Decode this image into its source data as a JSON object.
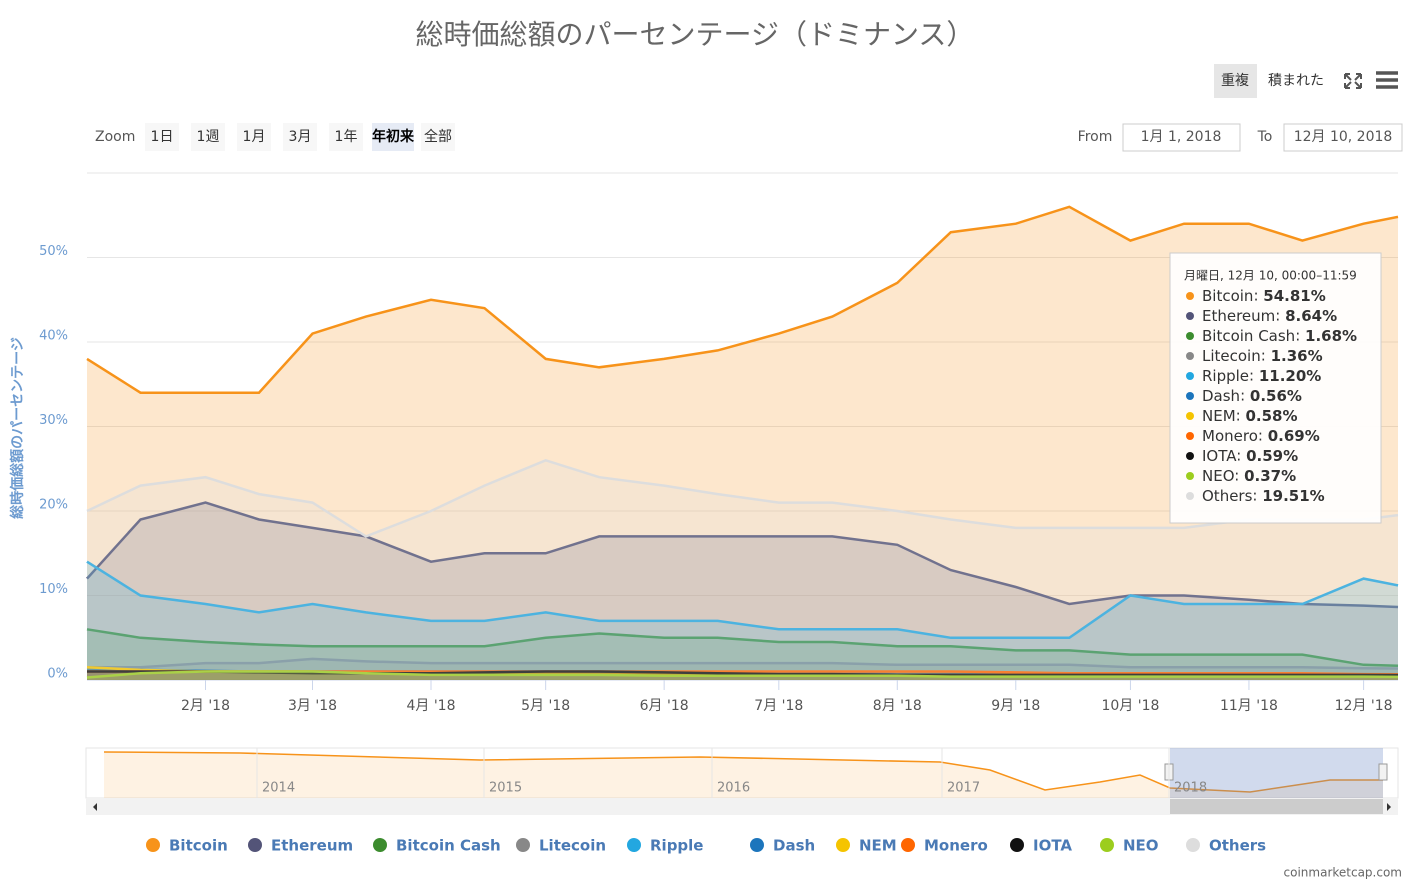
{
  "ui": {
    "buttons": [
      "重複",
      "積まれた"
    ],
    "zoom_label": "Zoom",
    "zoom_buttons": [
      "1日",
      "1週",
      "1月",
      "3月",
      "1年",
      "年初来",
      "全部"
    ],
    "from_label": "From",
    "from_value": "1月 1, 2018",
    "to_label": "To",
    "to_value": "12月 10, 2018",
    "navigator_years": [
      "2014",
      "2015",
      "2016",
      "2017",
      "2018"
    ],
    "credit": "coinmarketcap.com"
  },
  "chart_data": {
    "type": "area",
    "title": "総時価総額のパーセンテージ（ドミナンス）",
    "y_label": "総時価総額のパーセンテージ",
    "x": [
      "2018-01-01",
      "2018-01-15",
      "2018-02-01",
      "2018-02-15",
      "2018-03-01",
      "2018-03-15",
      "2018-04-01",
      "2018-04-15",
      "2018-05-01",
      "2018-05-15",
      "2018-06-01",
      "2018-06-15",
      "2018-07-01",
      "2018-07-15",
      "2018-08-01",
      "2018-08-15",
      "2018-09-01",
      "2018-09-15",
      "2018-10-01",
      "2018-10-15",
      "2018-11-01",
      "2018-11-15",
      "2018-12-01",
      "2018-12-10"
    ],
    "xlim": [
      "2018-01-01",
      "2018-12-10"
    ],
    "xticks": [
      {
        "value": "2018-02-01",
        "label": "2月 '18"
      },
      {
        "value": "2018-03-01",
        "label": "3月 '18"
      },
      {
        "value": "2018-04-01",
        "label": "4月 '18"
      },
      {
        "value": "2018-05-01",
        "label": "5月 '18"
      },
      {
        "value": "2018-06-01",
        "label": "6月 '18"
      },
      {
        "value": "2018-07-01",
        "label": "7月 '18"
      },
      {
        "value": "2018-08-01",
        "label": "8月 '18"
      },
      {
        "value": "2018-09-01",
        "label": "9月 '18"
      },
      {
        "value": "2018-10-01",
        "label": "10月 '18"
      },
      {
        "value": "2018-11-01",
        "label": "11月 '18"
      },
      {
        "value": "2018-12-01",
        "label": "12月 '18"
      }
    ],
    "ylim": [
      0,
      60
    ],
    "yticks": [
      {
        "value": 0,
        "label": "0%"
      },
      {
        "value": 10,
        "label": "10%"
      },
      {
        "value": 20,
        "label": "20%"
      },
      {
        "value": 30,
        "label": "30%"
      },
      {
        "value": 40,
        "label": "40%"
      },
      {
        "value": 50,
        "label": "50%"
      }
    ],
    "grid": true,
    "series": [
      {
        "name": "Bitcoin",
        "color": "#f7931a",
        "values": [
          38,
          34,
          34,
          34,
          41,
          43,
          45,
          44,
          38,
          37,
          38,
          39,
          41,
          43,
          47,
          53,
          54,
          56,
          52,
          54,
          54,
          52,
          54,
          54.81
        ]
      },
      {
        "name": "Ethereum",
        "color": "#535478",
        "values": [
          12,
          19,
          21,
          19,
          18,
          17,
          14,
          15,
          15,
          17,
          17,
          17,
          17,
          17,
          16,
          13,
          11,
          9,
          10,
          10,
          9.5,
          9,
          8.8,
          8.64
        ]
      },
      {
        "name": "Bitcoin Cash",
        "color": "#3c8c2e",
        "values": [
          6,
          5,
          4.5,
          4.2,
          4,
          4,
          4,
          4,
          5,
          5.5,
          5,
          5,
          4.5,
          4.5,
          4,
          4,
          3.5,
          3.5,
          3,
          3,
          3,
          3,
          1.8,
          1.68
        ]
      },
      {
        "name": "Litecoin",
        "color": "#888888",
        "values": [
          1.5,
          1.5,
          2,
          2,
          2.5,
          2.2,
          2,
          2,
          2,
          2,
          2,
          2,
          2,
          2,
          1.8,
          1.8,
          1.8,
          1.8,
          1.5,
          1.5,
          1.5,
          1.5,
          1.4,
          1.36
        ]
      },
      {
        "name": "Ripple",
        "color": "#23a7e0",
        "values": [
          14,
          10,
          9,
          8,
          9,
          8,
          7,
          7,
          8,
          7,
          7,
          7,
          6,
          6,
          6,
          5,
          5,
          5,
          10,
          9,
          9,
          9,
          12,
          11.2
        ]
      },
      {
        "name": "Dash",
        "color": "#1c75bc",
        "values": [
          1.2,
          1.2,
          1.1,
          1,
          1,
          1,
          1,
          1,
          1,
          0.9,
          0.8,
          0.8,
          0.8,
          0.8,
          0.7,
          0.7,
          0.7,
          0.7,
          0.6,
          0.6,
          0.6,
          0.6,
          0.6,
          0.56
        ]
      },
      {
        "name": "NEM",
        "color": "#f5c400",
        "values": [
          1.5,
          1.2,
          1,
          1,
          1,
          0.9,
          0.8,
          0.8,
          0.8,
          0.7,
          0.7,
          0.6,
          0.6,
          0.6,
          0.6,
          0.6,
          0.6,
          0.6,
          0.6,
          0.6,
          0.6,
          0.6,
          0.6,
          0.58
        ]
      },
      {
        "name": "Monero",
        "color": "#ff6600",
        "values": [
          1,
          1,
          1,
          1,
          1,
          1,
          1,
          1,
          1,
          1,
          1,
          1,
          1,
          1,
          1,
          1,
          0.9,
          0.8,
          0.8,
          0.8,
          0.8,
          0.8,
          0.7,
          0.69
        ]
      },
      {
        "name": "IOTA",
        "color": "#111111",
        "values": [
          1,
          1,
          1,
          0.9,
          0.8,
          0.8,
          0.8,
          0.9,
          1,
          1,
          0.9,
          0.8,
          0.7,
          0.7,
          0.6,
          0.6,
          0.6,
          0.6,
          0.6,
          0.6,
          0.6,
          0.6,
          0.6,
          0.59
        ]
      },
      {
        "name": "NEO",
        "color": "#9ccd1e",
        "values": [
          0.3,
          0.8,
          1,
          1,
          1,
          0.8,
          0.6,
          0.6,
          0.6,
          0.6,
          0.5,
          0.5,
          0.5,
          0.5,
          0.5,
          0.4,
          0.4,
          0.4,
          0.4,
          0.4,
          0.4,
          0.4,
          0.4,
          0.37
        ]
      },
      {
        "name": "Others",
        "color": "#dddddd",
        "values": [
          20,
          23,
          24,
          22,
          21,
          17,
          20,
          23,
          26,
          24,
          23,
          22,
          21,
          21,
          20,
          19,
          18,
          18,
          18,
          18,
          19,
          19,
          19,
          19.51
        ]
      }
    ],
    "tooltip": {
      "header": "月曜日, 12月 10, 00:00–11:59",
      "items": [
        {
          "value": 54.81,
          "label": "54.81%"
        },
        {
          "value": 8.64,
          "label": "8.64%"
        },
        {
          "value": 1.68,
          "label": "1.68%"
        },
        {
          "value": 1.36,
          "label": "1.36%"
        },
        {
          "value": 11.2,
          "label": "11.20%"
        },
        {
          "value": 0.56,
          "label": "0.56%"
        },
        {
          "value": 0.58,
          "label": "0.58%"
        },
        {
          "value": 0.69,
          "label": "0.69%"
        },
        {
          "value": 0.59,
          "label": "0.59%"
        },
        {
          "value": 0.37,
          "label": "0.37%"
        },
        {
          "value": 19.51,
          "label": "19.51%"
        }
      ]
    }
  }
}
